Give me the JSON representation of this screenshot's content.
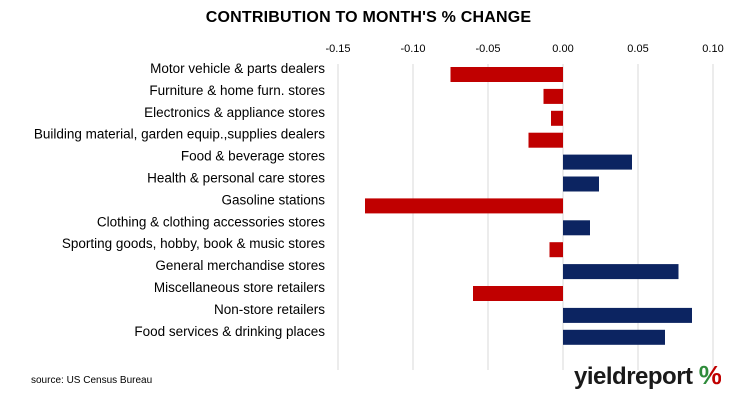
{
  "chart_data": {
    "type": "bar",
    "orientation": "horizontal",
    "title": "CONTRIBUTION TO MONTH'S % CHANGE",
    "x_ticks": [
      "-0.15",
      "-0.10",
      "-0.05",
      "0.00",
      "0.05",
      "0.10"
    ],
    "xlim": [
      -0.15,
      0.1
    ],
    "grid": true,
    "categories": [
      "Motor vehicle & parts dealers",
      "Furniture & home furn. stores",
      "Electronics & appliance stores",
      "Building material, garden equip.,supplies dealers",
      "Food & beverage stores",
      "Health & personal care stores",
      "Gasoline stations",
      "Clothing & clothing accessories stores",
      "Sporting goods, hobby, book & music stores",
      "General merchandise stores",
      "Miscellaneous store retailers",
      "Non-store retailers",
      "Food services & drinking places"
    ],
    "values": [
      -0.075,
      -0.013,
      -0.008,
      -0.023,
      0.046,
      0.024,
      -0.132,
      0.018,
      -0.009,
      0.077,
      -0.06,
      0.086,
      0.068
    ],
    "colors": {
      "negative": "#c00000",
      "positive": "#0c2461"
    }
  },
  "source": "source: US Census Bureau",
  "logo": {
    "word": "yieldreport",
    "symbol": "%"
  }
}
